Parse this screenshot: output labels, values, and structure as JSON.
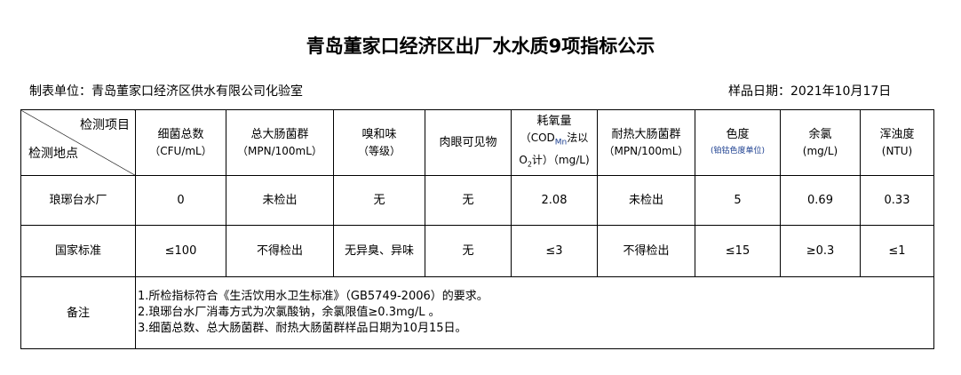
{
  "title": "青岛董家口经济区出厂水水质9项指标公示",
  "unit": "制表单位：青岛董家口经济区供水有限公司化验室",
  "date": "样品日期：2021年10月17日",
  "header": {
    "item_label": "检测项目",
    "site_label": "检测地点",
    "cols": [
      {
        "name": "细菌总数",
        "unit": "（CFU/mL）"
      },
      {
        "name": "总大肠菌群",
        "unit": "（MPN/100mL）"
      },
      {
        "name": "嗅和味",
        "unit": "（等级）"
      },
      {
        "name": "肉眼可见物",
        "unit": ""
      },
      {
        "name": "耗氧量",
        "unit": "（COD",
        "sub": "Mn",
        "unit2": "法以",
        "unit3": "O",
        "sub2": "2",
        "unit4": "计）（mg/L)"
      },
      {
        "name": "耐热大肠菌群",
        "unit": "（MPN/100mL）"
      },
      {
        "name": "色度",
        "unit": "(铂钴色度单位)"
      },
      {
        "name": "余氯",
        "unit": "(mg/L)"
      },
      {
        "name": "浑浊度",
        "unit": "(NTU)"
      }
    ]
  },
  "rows": [
    {
      "site": "琅琊台水厂",
      "values": [
        "0",
        "未检出",
        "无",
        "无",
        "2.08",
        "未检出",
        "5",
        "0.69",
        "0.33"
      ]
    },
    {
      "site": "国家标准",
      "values": [
        "≤100",
        "不得检出",
        "无异臭、异味",
        "无",
        "≤3",
        "不得检出",
        "≤15",
        "≥0.3",
        "≤1"
      ]
    }
  ],
  "remarks": {
    "label": "备注",
    "lines": [
      "1.所检指标符合《生活饮用水卫生标准》（GB5749-2006）的要求。",
      "2.琅琊台水厂消毒方式为次氯酸钠，余氯限值≥0.3mg/L 。",
      "3.细菌总数、总大肠菌群、耐热大肠菌群样品日期为10月15日。"
    ]
  }
}
